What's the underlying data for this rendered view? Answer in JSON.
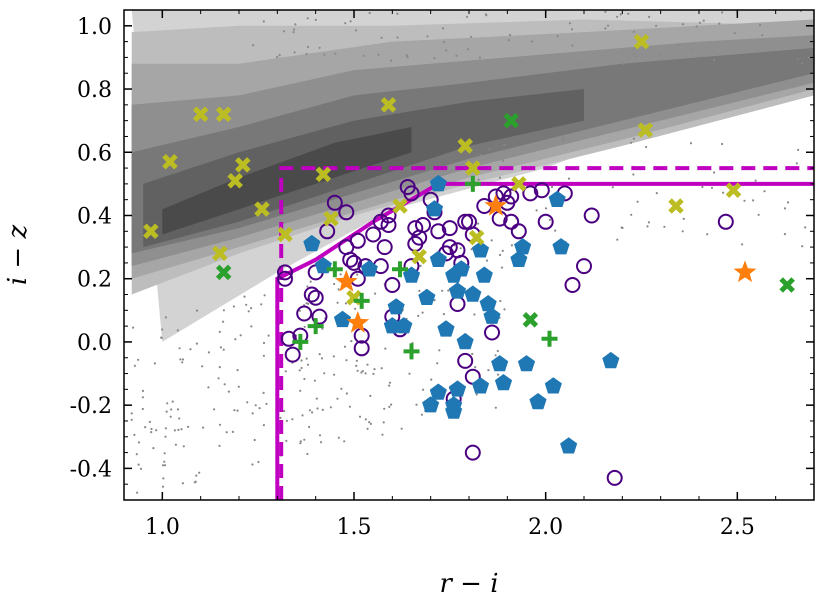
{
  "chart_data": {
    "type": "scatter",
    "title": "",
    "xlabel": "r − i",
    "ylabel": "i − z",
    "xlim": [
      0.9,
      2.7
    ],
    "ylim": [
      -0.5,
      1.05
    ],
    "xticks": [
      1.0,
      1.5,
      2.0,
      2.5
    ],
    "xtick_labels": [
      "1.0",
      "1.5",
      "2.0",
      "2.5"
    ],
    "yticks": [
      -0.4,
      -0.2,
      0.0,
      0.2,
      0.4,
      0.6,
      0.8,
      1.0
    ],
    "ytick_labels": [
      "-0.4",
      "-0.2",
      "0.0",
      "0.2",
      "0.4",
      "0.6",
      "0.8",
      "1.0"
    ],
    "grid": false,
    "background_density": {
      "description": "grey filled contours of background source density with scattered grey dots",
      "colors": [
        "#d3d3d3",
        "#bdbdbd",
        "#a6a6a6",
        "#8f8f8f",
        "#787878",
        "#616161",
        "#4a4a4a"
      ]
    },
    "selection_lines": [
      {
        "name": "solid-selection",
        "style": "solid",
        "color": "#c000c0",
        "points": [
          [
            1.3,
            -0.5
          ],
          [
            1.3,
            0.2
          ],
          [
            1.4,
            0.26
          ],
          [
            1.55,
            0.38
          ],
          [
            1.72,
            0.5
          ],
          [
            2.7,
            0.5
          ]
        ]
      },
      {
        "name": "dashed-selection",
        "style": "dashed",
        "color": "#c000c0",
        "points": [
          [
            1.31,
            -0.5
          ],
          [
            1.31,
            0.55
          ],
          [
            2.7,
            0.55
          ]
        ]
      }
    ],
    "series": [
      {
        "name": "yellow-crosses",
        "marker": "x",
        "color": "#bcbd22",
        "points": [
          [
            0.97,
            0.35
          ],
          [
            1.02,
            0.57
          ],
          [
            1.1,
            0.72
          ],
          [
            1.16,
            0.72
          ],
          [
            1.19,
            0.51
          ],
          [
            1.21,
            0.56
          ],
          [
            1.15,
            0.28
          ],
          [
            1.26,
            0.42
          ],
          [
            1.32,
            0.34
          ],
          [
            1.42,
            0.53
          ],
          [
            1.44,
            0.39
          ],
          [
            1.5,
            0.14
          ],
          [
            1.59,
            0.75
          ],
          [
            1.62,
            0.43
          ],
          [
            1.67,
            0.27
          ],
          [
            1.79,
            0.62
          ],
          [
            1.81,
            0.55
          ],
          [
            1.82,
            0.33
          ],
          [
            1.93,
            0.5
          ],
          [
            2.25,
            0.95
          ],
          [
            2.26,
            0.67
          ],
          [
            2.34,
            0.43
          ],
          [
            2.49,
            0.48
          ]
        ]
      },
      {
        "name": "green-crosses",
        "marker": "x",
        "color": "#2ca02c",
        "points": [
          [
            1.16,
            0.22
          ],
          [
            1.91,
            0.7
          ],
          [
            1.96,
            0.07
          ],
          [
            2.63,
            0.18
          ]
        ]
      },
      {
        "name": "green-plus",
        "marker": "plus",
        "color": "#2ca02c",
        "points": [
          [
            1.36,
            0.0
          ],
          [
            1.4,
            0.05
          ],
          [
            1.45,
            0.23
          ],
          [
            1.52,
            0.13
          ],
          [
            1.62,
            0.23
          ],
          [
            1.65,
            -0.03
          ],
          [
            1.81,
            0.5
          ],
          [
            2.01,
            0.01
          ]
        ]
      },
      {
        "name": "orange-stars",
        "marker": "star",
        "color": "#ff7f0e",
        "points": [
          [
            1.48,
            0.19
          ],
          [
            1.51,
            0.06
          ],
          [
            1.87,
            0.43
          ],
          [
            2.52,
            0.22
          ]
        ]
      },
      {
        "name": "blue-pentagons",
        "marker": "pentagon",
        "color": "#1f77b4",
        "points": [
          [
            1.39,
            0.31
          ],
          [
            1.42,
            0.24
          ],
          [
            1.47,
            0.07
          ],
          [
            1.54,
            0.23
          ],
          [
            1.61,
            0.11
          ],
          [
            1.63,
            0.05
          ],
          [
            1.65,
            0.21
          ],
          [
            1.69,
            0.14
          ],
          [
            1.72,
            0.26
          ],
          [
            1.71,
            0.42
          ],
          [
            1.72,
            0.5
          ],
          [
            1.74,
            0.04
          ],
          [
            1.76,
            0.21
          ],
          [
            1.77,
            0.16
          ],
          [
            1.78,
            0.23
          ],
          [
            1.79,
            0.0
          ],
          [
            1.81,
            0.15
          ],
          [
            1.83,
            0.29
          ],
          [
            1.84,
            0.21
          ],
          [
            1.85,
            0.12
          ],
          [
            1.86,
            0.08
          ],
          [
            1.88,
            -0.07
          ],
          [
            1.89,
            -0.13
          ],
          [
            1.7,
            -0.2
          ],
          [
            1.72,
            -0.16
          ],
          [
            1.76,
            -0.2
          ],
          [
            1.77,
            -0.15
          ],
          [
            1.83,
            -0.14
          ],
          [
            1.93,
            0.26
          ],
          [
            1.94,
            0.3
          ],
          [
            1.95,
            -0.07
          ],
          [
            1.98,
            -0.19
          ],
          [
            2.02,
            -0.14
          ],
          [
            2.03,
            0.45
          ],
          [
            2.04,
            0.3
          ],
          [
            2.06,
            -0.33
          ],
          [
            2.17,
            -0.06
          ],
          [
            1.6,
            0.05
          ],
          [
            1.76,
            -0.22
          ]
        ]
      },
      {
        "name": "purple-circles",
        "marker": "circle",
        "color": "#4b0082",
        "points": [
          [
            1.32,
            0.2
          ],
          [
            1.32,
            0.22
          ],
          [
            1.33,
            0.01
          ],
          [
            1.34,
            -0.04
          ],
          [
            1.36,
            0.02
          ],
          [
            1.37,
            0.09
          ],
          [
            1.39,
            0.15
          ],
          [
            1.4,
            0.14
          ],
          [
            1.4,
            0.22
          ],
          [
            1.41,
            0.08
          ],
          [
            1.43,
            0.35
          ],
          [
            1.45,
            0.44
          ],
          [
            1.48,
            0.3
          ],
          [
            1.48,
            0.41
          ],
          [
            1.49,
            0.26
          ],
          [
            1.5,
            0.25
          ],
          [
            1.51,
            0.2
          ],
          [
            1.51,
            0.32
          ],
          [
            1.52,
            0.02
          ],
          [
            1.52,
            -0.02
          ],
          [
            1.53,
            0.24
          ],
          [
            1.55,
            0.34
          ],
          [
            1.57,
            0.24
          ],
          [
            1.57,
            0.38
          ],
          [
            1.58,
            0.3
          ],
          [
            1.59,
            0.37
          ],
          [
            1.59,
            0.4
          ],
          [
            1.6,
            0.08
          ],
          [
            1.62,
            0.04
          ],
          [
            1.64,
            0.49
          ],
          [
            1.65,
            0.47
          ],
          [
            1.65,
            0.24
          ],
          [
            1.66,
            0.36
          ],
          [
            1.66,
            0.31
          ],
          [
            1.67,
            0.33
          ],
          [
            1.68,
            0.37
          ],
          [
            1.7,
            0.45
          ],
          [
            1.71,
            0.41
          ],
          [
            1.72,
            0.35
          ],
          [
            1.74,
            0.28
          ],
          [
            1.75,
            0.3
          ],
          [
            1.75,
            0.36
          ],
          [
            1.77,
            0.29
          ],
          [
            1.78,
            0.25
          ],
          [
            1.79,
            0.38
          ],
          [
            1.79,
            -0.06
          ],
          [
            1.8,
            0.38
          ],
          [
            1.81,
            0.34
          ],
          [
            1.81,
            -0.11
          ],
          [
            1.81,
            -0.35
          ],
          [
            1.84,
            0.43
          ],
          [
            1.86,
            0.03
          ],
          [
            1.87,
            0.46
          ],
          [
            1.88,
            0.39
          ],
          [
            1.89,
            0.47
          ],
          [
            1.9,
            0.44
          ],
          [
            1.91,
            0.46
          ],
          [
            1.91,
            0.38
          ],
          [
            1.93,
            0.35
          ],
          [
            1.96,
            0.47
          ],
          [
            1.99,
            0.48
          ],
          [
            2.0,
            0.38
          ],
          [
            2.05,
            0.47
          ],
          [
            2.07,
            0.18
          ],
          [
            2.1,
            0.24
          ],
          [
            2.12,
            0.4
          ],
          [
            2.18,
            -0.43
          ],
          [
            2.47,
            0.38
          ],
          [
            1.76,
            -0.18
          ],
          [
            1.6,
            0.18
          ],
          [
            1.77,
            0.12
          ]
        ]
      }
    ]
  }
}
